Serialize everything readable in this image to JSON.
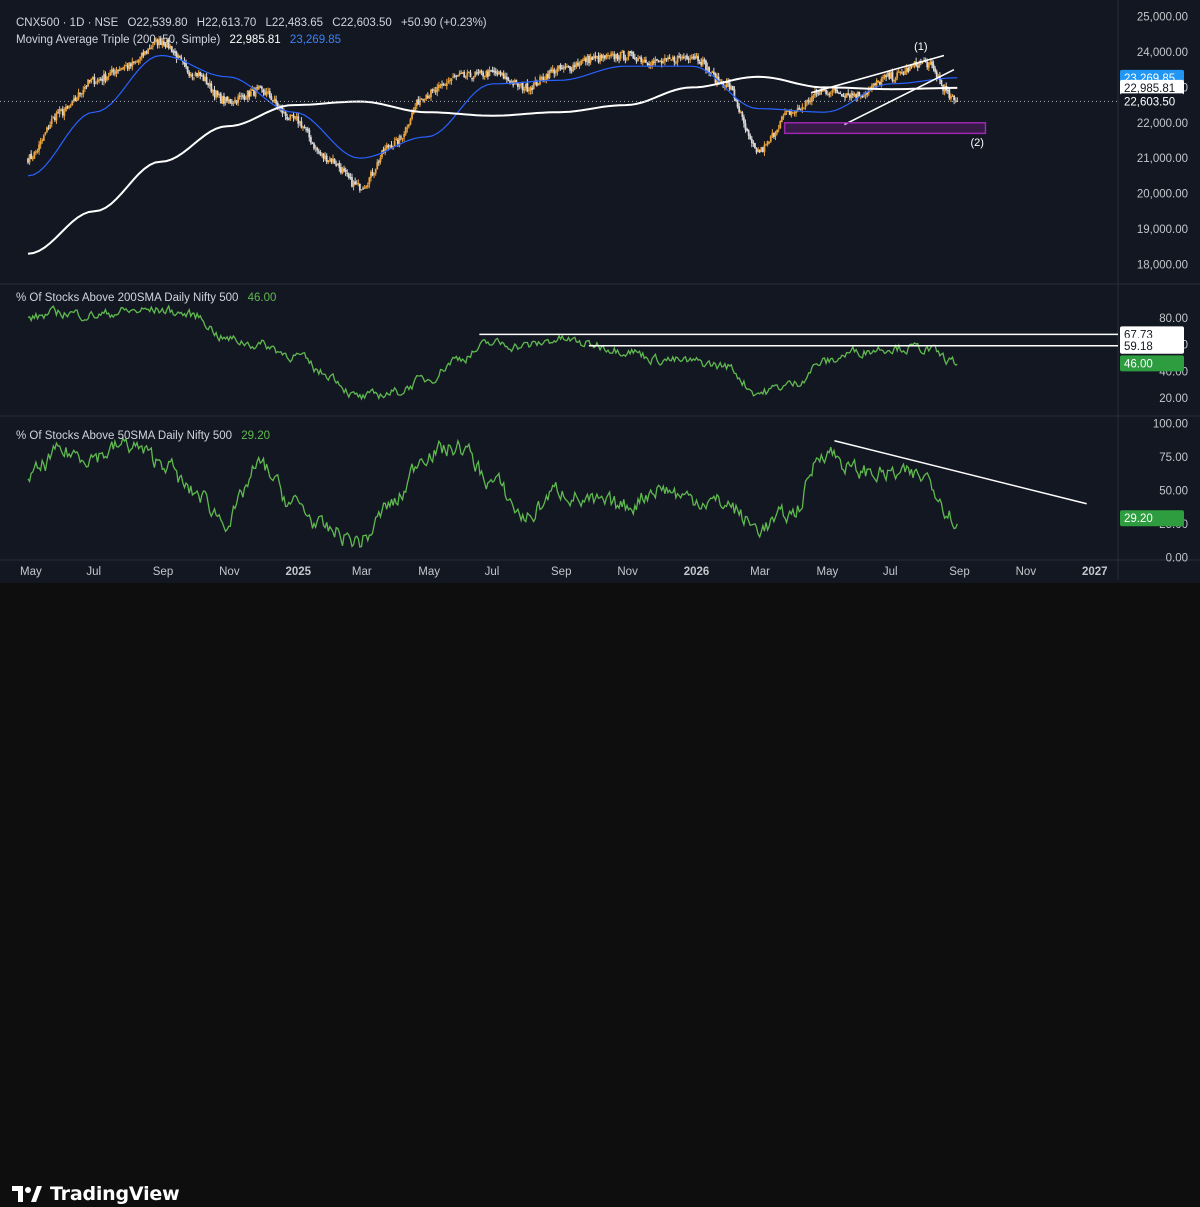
{
  "footer": {
    "brand": "TradingView"
  },
  "main_header": {
    "symbol": "CNX500 · 1D · NSE",
    "ohlc": [
      {
        "k": "O",
        "v": "22,539.80"
      },
      {
        "k": "H",
        "v": "22,613.70"
      },
      {
        "k": "L",
        "v": "22,483.65"
      },
      {
        "k": "C",
        "v": "22,603.50"
      }
    ],
    "change": "+50.90 (+0.23%)",
    "ma_label": "Moving Average Triple (200, 50, Simple)",
    "ma_value_1": "22,985.81",
    "ma_value_2": "23,269.85"
  },
  "panel2_header": {
    "label": "% Of Stocks Above 200SMA Daily Nifty 500",
    "value": "46.00"
  },
  "panel3_header": {
    "label": "% Of Stocks Above 50SMA Daily Nifty 500",
    "value": "29.20"
  },
  "colors": {
    "background": "#131722",
    "separator": "#2a2e39",
    "up_candle": "#e8a33d",
    "down_candle": "#d9d9d9",
    "ma_200": "#ffffff",
    "ma_50": "#2962ff",
    "breadth_line": "#5fb94f",
    "box": "#9c27b0",
    "axis_text": "#c4c6cc"
  },
  "chart_data": [
    {
      "type": "line",
      "title": "CNX500 · 1D · NSE",
      "series": [
        {
          "name": "CNX500",
          "style": "candlestick",
          "x": [
            "2024-05",
            "2024-06",
            "2024-07",
            "2024-08",
            "2024-09",
            "2024-10",
            "2024-11",
            "2024-12",
            "2025-01",
            "2025-02",
            "2025-03",
            "2025-04",
            "2025-05",
            "2025-06",
            "2025-07",
            "2025-08",
            "2025-09",
            "2025-10",
            "2025-11",
            "2025-12",
            "2026-01",
            "2026-02",
            "2026-03",
            "2026-04",
            "2026-05",
            "2026-06",
            "2026-07",
            "2026-08",
            "2026-09"
          ],
          "values": [
            21000,
            22300,
            23200,
            23600,
            24300,
            23400,
            22600,
            22900,
            22100,
            21000,
            20200,
            21400,
            22800,
            23300,
            23400,
            23000,
            23500,
            23800,
            23900,
            23700,
            23900,
            23100,
            21200,
            22300,
            22900,
            22800,
            23300,
            23700,
            22600
          ]
        },
        {
          "name": "Moving Average 200",
          "style": "line",
          "color": "#ffffff",
          "x": [
            "2024-05",
            "2024-07",
            "2024-09",
            "2024-11",
            "2025-01",
            "2025-03",
            "2025-05",
            "2025-07",
            "2025-09",
            "2025-11",
            "2026-01",
            "2026-03",
            "2026-05",
            "2026-07",
            "2026-09"
          ],
          "values": [
            18300,
            19500,
            20900,
            21900,
            22500,
            22600,
            22300,
            22200,
            22300,
            22500,
            23000,
            23300,
            23000,
            22950,
            22986
          ]
        },
        {
          "name": "Moving Average 50",
          "style": "line",
          "color": "#2962ff",
          "x": [
            "2024-05",
            "2024-07",
            "2024-09",
            "2024-11",
            "2025-01",
            "2025-03",
            "2025-05",
            "2025-07",
            "2025-09",
            "2025-11",
            "2026-01",
            "2026-03",
            "2026-05",
            "2026-07",
            "2026-09"
          ],
          "values": [
            20500,
            22300,
            23900,
            23300,
            22300,
            21000,
            21600,
            23100,
            23200,
            23600,
            23600,
            22400,
            22300,
            23100,
            23270
          ]
        }
      ],
      "ylim": [
        17500,
        25300
      ],
      "yticks": [
        "18,000.00",
        "19,000.00",
        "20,000.00",
        "21,000.00",
        "22,000.00",
        "23,000.00",
        "24,000.00",
        "25,000.00"
      ],
      "price_tags": [
        {
          "label": "23,269.85",
          "value": 23270,
          "style": "blue"
        },
        {
          "label": "22,985.81",
          "value": 22986,
          "style": "white"
        },
        {
          "label": "22,603.50",
          "value": 22604,
          "style": "dark"
        }
      ],
      "annotations": [
        {
          "label": "(1)",
          "type": "rising wedge"
        },
        {
          "label": "(2)",
          "type": "support box",
          "range": [
            21700,
            22000
          ]
        }
      ]
    },
    {
      "type": "line",
      "title": "% Of Stocks Above 200SMA Daily Nifty 500",
      "series": [
        {
          "name": "% Of Stocks Above 200SMA Daily Nifty 500",
          "x": [
            "2024-05",
            "2024-06",
            "2024-07",
            "2024-08",
            "2024-09",
            "2024-10",
            "2024-11",
            "2024-12",
            "2025-01",
            "2025-02",
            "2025-03",
            "2025-04",
            "2025-05",
            "2025-06",
            "2025-07",
            "2025-08",
            "2025-09",
            "2025-10",
            "2025-11",
            "2025-12",
            "2026-01",
            "2026-02",
            "2026-03",
            "2026-04",
            "2026-05",
            "2026-06",
            "2026-07",
            "2026-08",
            "2026-09"
          ],
          "values": [
            80,
            84,
            82,
            85,
            86,
            82,
            64,
            60,
            52,
            38,
            20,
            24,
            34,
            50,
            61,
            59,
            64,
            60,
            56,
            49,
            47,
            44,
            24,
            30,
            47,
            55,
            58,
            57,
            46
          ]
        }
      ],
      "ylim": [
        8,
        92
      ],
      "yticks": [
        "20.00",
        "40.00",
        "60.00",
        "80.00"
      ],
      "price_tags": [
        {
          "label": "67.73",
          "value": 67.73,
          "style": "white"
        },
        {
          "label": "59.18",
          "value": 59.18,
          "style": "white"
        },
        {
          "label": "46.00",
          "value": 46.0,
          "style": "green"
        }
      ]
    },
    {
      "type": "line",
      "title": "% Of Stocks Above 50SMA Daily Nifty 500",
      "series": [
        {
          "name": "% Of Stocks Above 50SMA Daily Nifty 500",
          "x": [
            "2024-05",
            "2024-06",
            "2024-07",
            "2024-08",
            "2024-09",
            "2024-10",
            "2024-11",
            "2024-12",
            "2025-01",
            "2025-02",
            "2025-03",
            "2025-04",
            "2025-05",
            "2025-06",
            "2025-07",
            "2025-08",
            "2025-09",
            "2025-10",
            "2025-11",
            "2025-12",
            "2026-01",
            "2026-02",
            "2026-03",
            "2026-04",
            "2026-05",
            "2026-06",
            "2026-07",
            "2026-08",
            "2026-09"
          ],
          "values": [
            60,
            78,
            76,
            84,
            72,
            48,
            28,
            68,
            40,
            20,
            12,
            40,
            78,
            82,
            56,
            30,
            50,
            40,
            38,
            52,
            44,
            40,
            22,
            32,
            80,
            64,
            62,
            60,
            29
          ]
        }
      ],
      "ylim": [
        -2,
        104
      ],
      "yticks": [
        "0.00",
        "25.00",
        "50.00",
        "75.00",
        "100.00"
      ],
      "price_tags": [
        {
          "label": "29.20",
          "value": 29.2,
          "style": "green"
        }
      ]
    }
  ],
  "time_axis": [
    "May",
    "Jul",
    "Sep",
    "Nov",
    "2025",
    "Mar",
    "May",
    "Jul",
    "Sep",
    "Nov",
    "2026",
    "Mar",
    "May",
    "Jul",
    "Sep",
    "Nov",
    "2027"
  ]
}
